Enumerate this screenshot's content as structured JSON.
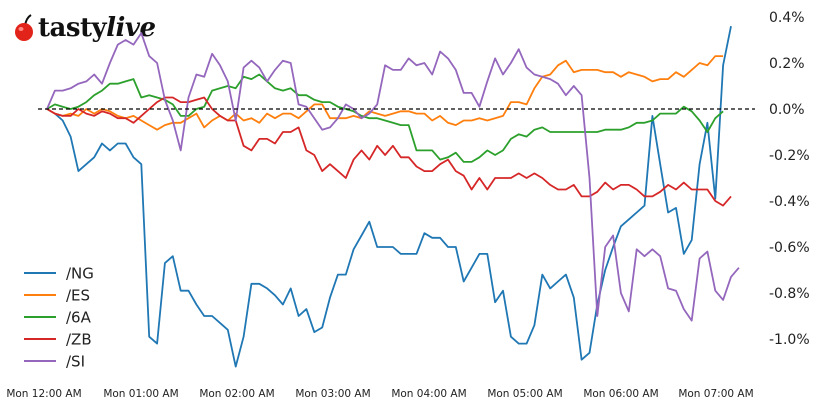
{
  "logo": {
    "brand_plain": "tasty",
    "brand_italic": "live",
    "icon": "cherry-icon",
    "icon_color": "#e2231a"
  },
  "chart_data": {
    "type": "line",
    "title": "",
    "xlabel": "",
    "ylabel": "",
    "y_axis_position": "right",
    "ylim": [
      -1.12,
      0.42
    ],
    "y_ticks": [
      "0.4%",
      "0.2%",
      "0.0%",
      "-0.2%",
      "-0.4%",
      "-0.6%",
      "-0.8%",
      "-1.0%"
    ],
    "y_tick_values": [
      0.4,
      0.2,
      0.0,
      -0.2,
      -0.4,
      -0.6,
      -0.8,
      -1.0
    ],
    "x_ticks": [
      "Mon 12:00 AM",
      "Mon 01:00 AM",
      "Mon 02:00 AM",
      "Mon 03:00 AM",
      "Mon 04:00 AM",
      "Mon 05:00 AM",
      "Mon 06:00 AM",
      "Mon 07:00 AM"
    ],
    "x_interval_minutes": 5,
    "reference_line": {
      "y": 0.0,
      "style": "dashed",
      "color": "#000000"
    },
    "grid": false,
    "legend_position": "lower left",
    "series": [
      {
        "name": "/NG",
        "color": "#1f77b4",
        "values": [
          0.0,
          -0.02,
          -0.05,
          -0.12,
          -0.27,
          -0.24,
          -0.21,
          -0.15,
          -0.18,
          -0.15,
          -0.15,
          -0.21,
          -0.24,
          -0.99,
          -1.02,
          -0.67,
          -0.64,
          -0.79,
          -0.79,
          -0.85,
          -0.9,
          -0.9,
          -0.93,
          -0.96,
          -1.12,
          -0.99,
          -0.76,
          -0.76,
          -0.78,
          -0.81,
          -0.85,
          -0.78,
          -0.9,
          -0.87,
          -0.97,
          -0.95,
          -0.82,
          -0.72,
          -0.72,
          -0.61,
          -0.55,
          -0.49,
          -0.6,
          -0.6,
          -0.6,
          -0.63,
          -0.63,
          -0.63,
          -0.54,
          -0.56,
          -0.56,
          -0.6,
          -0.6,
          -0.75,
          -0.69,
          -0.63,
          -0.63,
          -0.84,
          -0.79,
          -0.99,
          -1.02,
          -1.02,
          -0.94,
          -0.72,
          -0.78,
          -0.75,
          -0.72,
          -0.82,
          -1.09,
          -1.06,
          -0.85,
          -0.7,
          -0.6,
          -0.51,
          -0.48,
          -0.45,
          -0.42,
          -0.03,
          -0.24,
          -0.45,
          -0.43,
          -0.63,
          -0.57,
          -0.24,
          -0.06,
          -0.39,
          0.19,
          0.36
        ]
      },
      {
        "name": "/ES",
        "color": "#ff7f0e",
        "values": [
          0.0,
          -0.02,
          -0.03,
          -0.02,
          -0.03,
          0.0,
          -0.02,
          0.0,
          -0.01,
          -0.03,
          -0.04,
          -0.03,
          -0.05,
          -0.07,
          -0.09,
          -0.07,
          -0.06,
          -0.06,
          -0.04,
          -0.02,
          -0.08,
          -0.05,
          -0.03,
          -0.05,
          -0.02,
          -0.05,
          -0.04,
          -0.06,
          -0.02,
          -0.04,
          -0.02,
          -0.02,
          -0.04,
          -0.01,
          0.02,
          0.02,
          -0.04,
          -0.04,
          -0.04,
          -0.03,
          -0.04,
          -0.01,
          -0.02,
          -0.03,
          -0.02,
          -0.01,
          -0.01,
          -0.02,
          -0.02,
          -0.05,
          -0.03,
          -0.06,
          -0.07,
          -0.05,
          -0.05,
          -0.04,
          -0.05,
          -0.04,
          -0.03,
          0.03,
          0.03,
          0.02,
          0.09,
          0.14,
          0.15,
          0.19,
          0.21,
          0.16,
          0.17,
          0.17,
          0.17,
          0.16,
          0.16,
          0.14,
          0.16,
          0.15,
          0.14,
          0.12,
          0.13,
          0.13,
          0.16,
          0.14,
          0.17,
          0.2,
          0.19,
          0.23,
          0.23
        ]
      },
      {
        "name": "/6A",
        "color": "#2ca02c",
        "values": [
          0.0,
          0.02,
          0.01,
          0.0,
          0.01,
          0.03,
          0.06,
          0.08,
          0.11,
          0.11,
          0.12,
          0.13,
          0.05,
          0.06,
          0.05,
          0.04,
          0.02,
          -0.03,
          -0.03,
          0.0,
          0.01,
          0.08,
          0.09,
          0.1,
          0.09,
          0.14,
          0.13,
          0.15,
          0.12,
          0.09,
          0.08,
          0.09,
          0.06,
          0.06,
          0.04,
          0.03,
          0.03,
          0.01,
          0.0,
          -0.01,
          -0.03,
          -0.04,
          -0.04,
          -0.05,
          -0.06,
          -0.07,
          -0.07,
          -0.18,
          -0.18,
          -0.18,
          -0.22,
          -0.21,
          -0.19,
          -0.23,
          -0.23,
          -0.21,
          -0.18,
          -0.2,
          -0.18,
          -0.13,
          -0.11,
          -0.12,
          -0.09,
          -0.08,
          -0.1,
          -0.1,
          -0.1,
          -0.1,
          -0.1,
          -0.1,
          -0.1,
          -0.09,
          -0.09,
          -0.09,
          -0.08,
          -0.06,
          -0.06,
          -0.05,
          -0.02,
          -0.02,
          -0.02,
          0.01,
          -0.01,
          -0.05,
          -0.1,
          -0.04,
          -0.01
        ]
      },
      {
        "name": "/ZB",
        "color": "#d62728",
        "values": [
          0.0,
          -0.02,
          -0.03,
          -0.03,
          0.0,
          -0.02,
          -0.03,
          -0.01,
          -0.02,
          -0.04,
          -0.04,
          -0.06,
          -0.03,
          0.0,
          0.03,
          0.05,
          0.05,
          0.03,
          0.03,
          0.04,
          0.05,
          0.0,
          -0.03,
          -0.05,
          -0.05,
          -0.16,
          -0.18,
          -0.13,
          -0.13,
          -0.15,
          -0.1,
          -0.1,
          -0.08,
          -0.18,
          -0.2,
          -0.27,
          -0.24,
          -0.27,
          -0.3,
          -0.22,
          -0.18,
          -0.22,
          -0.16,
          -0.2,
          -0.16,
          -0.21,
          -0.21,
          -0.25,
          -0.27,
          -0.27,
          -0.24,
          -0.22,
          -0.27,
          -0.29,
          -0.35,
          -0.3,
          -0.35,
          -0.3,
          -0.3,
          -0.3,
          -0.28,
          -0.3,
          -0.28,
          -0.3,
          -0.33,
          -0.35,
          -0.35,
          -0.33,
          -0.38,
          -0.38,
          -0.36,
          -0.32,
          -0.35,
          -0.33,
          -0.33,
          -0.35,
          -0.38,
          -0.38,
          -0.36,
          -0.33,
          -0.35,
          -0.32,
          -0.35,
          -0.35,
          -0.35,
          -0.4,
          -0.42,
          -0.38
        ]
      },
      {
        "name": "/SI",
        "color": "#9467bd",
        "values": [
          0.0,
          0.08,
          0.08,
          0.09,
          0.11,
          0.12,
          0.15,
          0.11,
          0.2,
          0.28,
          0.3,
          0.28,
          0.33,
          0.23,
          0.2,
          0.04,
          -0.05,
          -0.18,
          0.05,
          0.15,
          0.14,
          0.24,
          0.19,
          0.12,
          -0.05,
          0.18,
          0.21,
          0.18,
          0.12,
          0.17,
          0.21,
          0.2,
          0.02,
          0.01,
          -0.04,
          -0.09,
          -0.08,
          -0.04,
          0.02,
          0.0,
          -0.04,
          -0.02,
          0.02,
          0.19,
          0.17,
          0.17,
          0.22,
          0.19,
          0.2,
          0.15,
          0.25,
          0.22,
          0.17,
          0.07,
          0.07,
          0.01,
          0.12,
          0.22,
          0.15,
          0.2,
          0.26,
          0.18,
          0.15,
          0.14,
          0.13,
          0.11,
          0.06,
          0.1,
          0.06,
          -0.3,
          -0.9,
          -0.6,
          -0.55,
          -0.8,
          -0.88,
          -0.61,
          -0.64,
          -0.61,
          -0.64,
          -0.78,
          -0.79,
          -0.87,
          -0.92,
          -0.65,
          -0.62,
          -0.79,
          -0.83,
          -0.73,
          -0.69
        ]
      }
    ]
  }
}
